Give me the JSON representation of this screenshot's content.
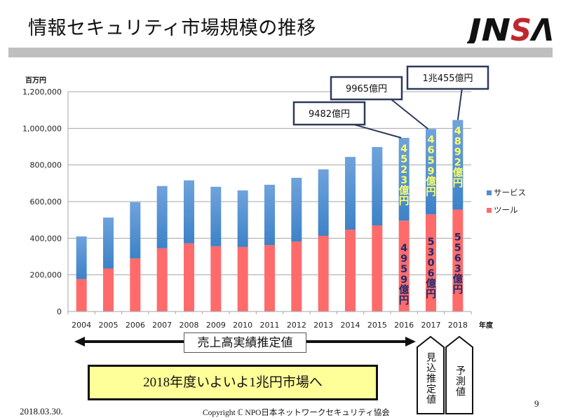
{
  "slide": {
    "title": "情報セキュリティ市場規模の推移",
    "logo_text": "JNSA",
    "logo_colors": {
      "text": "#111111",
      "accent_letter": "#c0272d"
    },
    "range_label": "売上高実績推定値",
    "headline": "2018年度いよいよ1兆円市場へ",
    "estimate_tag": "見込推定値",
    "forecast_tag": "予測値",
    "footer_date": "2018.03.30.",
    "footer_copyright": "Copyright ℂ  NPO日本ネットワークセキュリティ協会",
    "page_number": "9"
  },
  "chart_data": {
    "type": "bar",
    "stacked": true,
    "title": "情報セキュリティ市場規模の推移",
    "ylabel": "百万円",
    "xlabel": "年度",
    "ylim": [
      0,
      1200000
    ],
    "yticks": [
      0,
      200000,
      400000,
      600000,
      800000,
      1000000,
      1200000
    ],
    "ytick_labels": [
      "0",
      "200,000",
      "400,000",
      "600,000",
      "800,000",
      "1,000,000",
      "1,200,000"
    ],
    "grid": true,
    "legend_position": "right",
    "categories": [
      "2004",
      "2005",
      "2006",
      "2007",
      "2008",
      "2009",
      "2010",
      "2011",
      "2012",
      "2013",
      "2014",
      "2015",
      "2016",
      "2017",
      "2018"
    ],
    "series": [
      {
        "name": "ツール",
        "color": "#ff6b6b",
        "values": [
          177000,
          235000,
          290000,
          345000,
          372000,
          356000,
          352000,
          363000,
          382000,
          413000,
          447000,
          470000,
          495900,
          530600,
          556300
        ]
      },
      {
        "name": "サービス",
        "color": "#4a8fd4",
        "values": [
          233000,
          278000,
          307000,
          340000,
          344000,
          325000,
          309000,
          329000,
          348000,
          363000,
          397000,
          428000,
          452300,
          465900,
          489200
        ]
      }
    ],
    "legend_order": [
      "サービス",
      "ツール"
    ],
    "segment_labels": [
      {
        "category": "2016",
        "series": "ツール",
        "text": "4959億円"
      },
      {
        "category": "2016",
        "series": "サービス",
        "text": "4523億円"
      },
      {
        "category": "2017",
        "series": "ツール",
        "text": "5306億円"
      },
      {
        "category": "2017",
        "series": "サービス",
        "text": "4659億円"
      },
      {
        "category": "2018",
        "series": "ツール",
        "text": "5563億円"
      },
      {
        "category": "2018",
        "series": "サービス",
        "text": "4892億円"
      }
    ],
    "total_callouts": [
      {
        "category": "2016",
        "text": "9482億円"
      },
      {
        "category": "2017",
        "text": "9965億円"
      },
      {
        "category": "2018",
        "text": "1兆455億円"
      }
    ]
  }
}
